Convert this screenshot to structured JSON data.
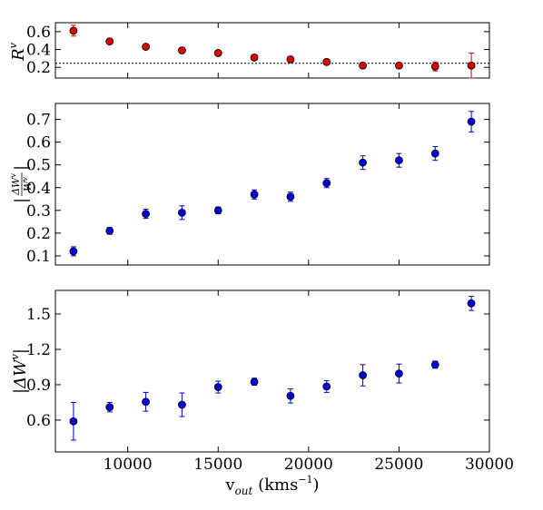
{
  "chart_data": [
    {
      "type": "scatter",
      "ylabel": "R^v",
      "xlim": [
        6000,
        30000
      ],
      "ylim": [
        0.08,
        0.7
      ],
      "yticks": [
        0.2,
        0.4,
        0.6
      ],
      "ytick_labels": [
        "0.2",
        "0.4",
        "0.6"
      ],
      "marker_color": "#dd0000",
      "reference_line": {
        "y": 0.245,
        "style": "dotted",
        "color": "#000000"
      },
      "series": [
        {
          "x": [
            7000,
            9000,
            11000,
            13000,
            15000,
            17000,
            19000,
            21000,
            23000,
            25000,
            27000,
            29000
          ],
          "y": [
            0.61,
            0.49,
            0.43,
            0.39,
            0.36,
            0.31,
            0.29,
            0.26,
            0.22,
            0.22,
            0.21,
            0.22
          ],
          "err": [
            0.06,
            0.02,
            0.02,
            0.02,
            0.02,
            0.02,
            0.02,
            0.02,
            0.02,
            0.03,
            0.05,
            0.14
          ]
        }
      ]
    },
    {
      "type": "scatter",
      "ylabel_fraction": {
        "numerator": "ΔW^v",
        "denominator": "W^v"
      },
      "xlim": [
        6000,
        30000
      ],
      "ylim": [
        0.06,
        0.77
      ],
      "yticks": [
        0.1,
        0.2,
        0.3,
        0.4,
        0.5,
        0.6,
        0.7
      ],
      "ytick_labels": [
        "0.1",
        "0.2",
        "0.3",
        "0.4",
        "0.5",
        "0.6",
        "0.7"
      ],
      "marker_color": "#0000dd",
      "series": [
        {
          "x": [
            7000,
            9000,
            11000,
            13000,
            15000,
            17000,
            19000,
            21000,
            23000,
            25000,
            27000,
            29000
          ],
          "y": [
            0.12,
            0.21,
            0.285,
            0.29,
            0.3,
            0.37,
            0.36,
            0.42,
            0.51,
            0.52,
            0.55,
            0.69
          ],
          "err": [
            0.02,
            0.015,
            0.02,
            0.03,
            0.015,
            0.02,
            0.02,
            0.02,
            0.03,
            0.03,
            0.03,
            0.045
          ]
        }
      ]
    },
    {
      "type": "scatter",
      "ylabel": "|ΔW^v|",
      "xlabel": "v_out (kms^-1)",
      "xlim": [
        6000,
        30000
      ],
      "ylim": [
        0.33,
        1.7
      ],
      "xticks": [
        10000,
        15000,
        20000,
        25000,
        30000
      ],
      "xtick_labels": [
        "10000",
        "15000",
        "20000",
        "25000",
        "30000"
      ],
      "yticks": [
        0.6,
        0.9,
        1.2,
        1.5
      ],
      "ytick_labels": [
        "0.6",
        "0.9",
        "1.2",
        "1.5"
      ],
      "marker_color": "#0000dd",
      "series": [
        {
          "x": [
            7000,
            9000,
            11000,
            13000,
            15000,
            17000,
            19000,
            21000,
            23000,
            25000,
            27000,
            29000
          ],
          "y": [
            0.59,
            0.71,
            0.755,
            0.73,
            0.88,
            0.925,
            0.805,
            0.885,
            0.98,
            0.995,
            1.07,
            1.59
          ],
          "err": [
            0.16,
            0.04,
            0.08,
            0.1,
            0.05,
            0.03,
            0.06,
            0.05,
            0.09,
            0.08,
            0.03,
            0.06
          ]
        }
      ]
    }
  ]
}
